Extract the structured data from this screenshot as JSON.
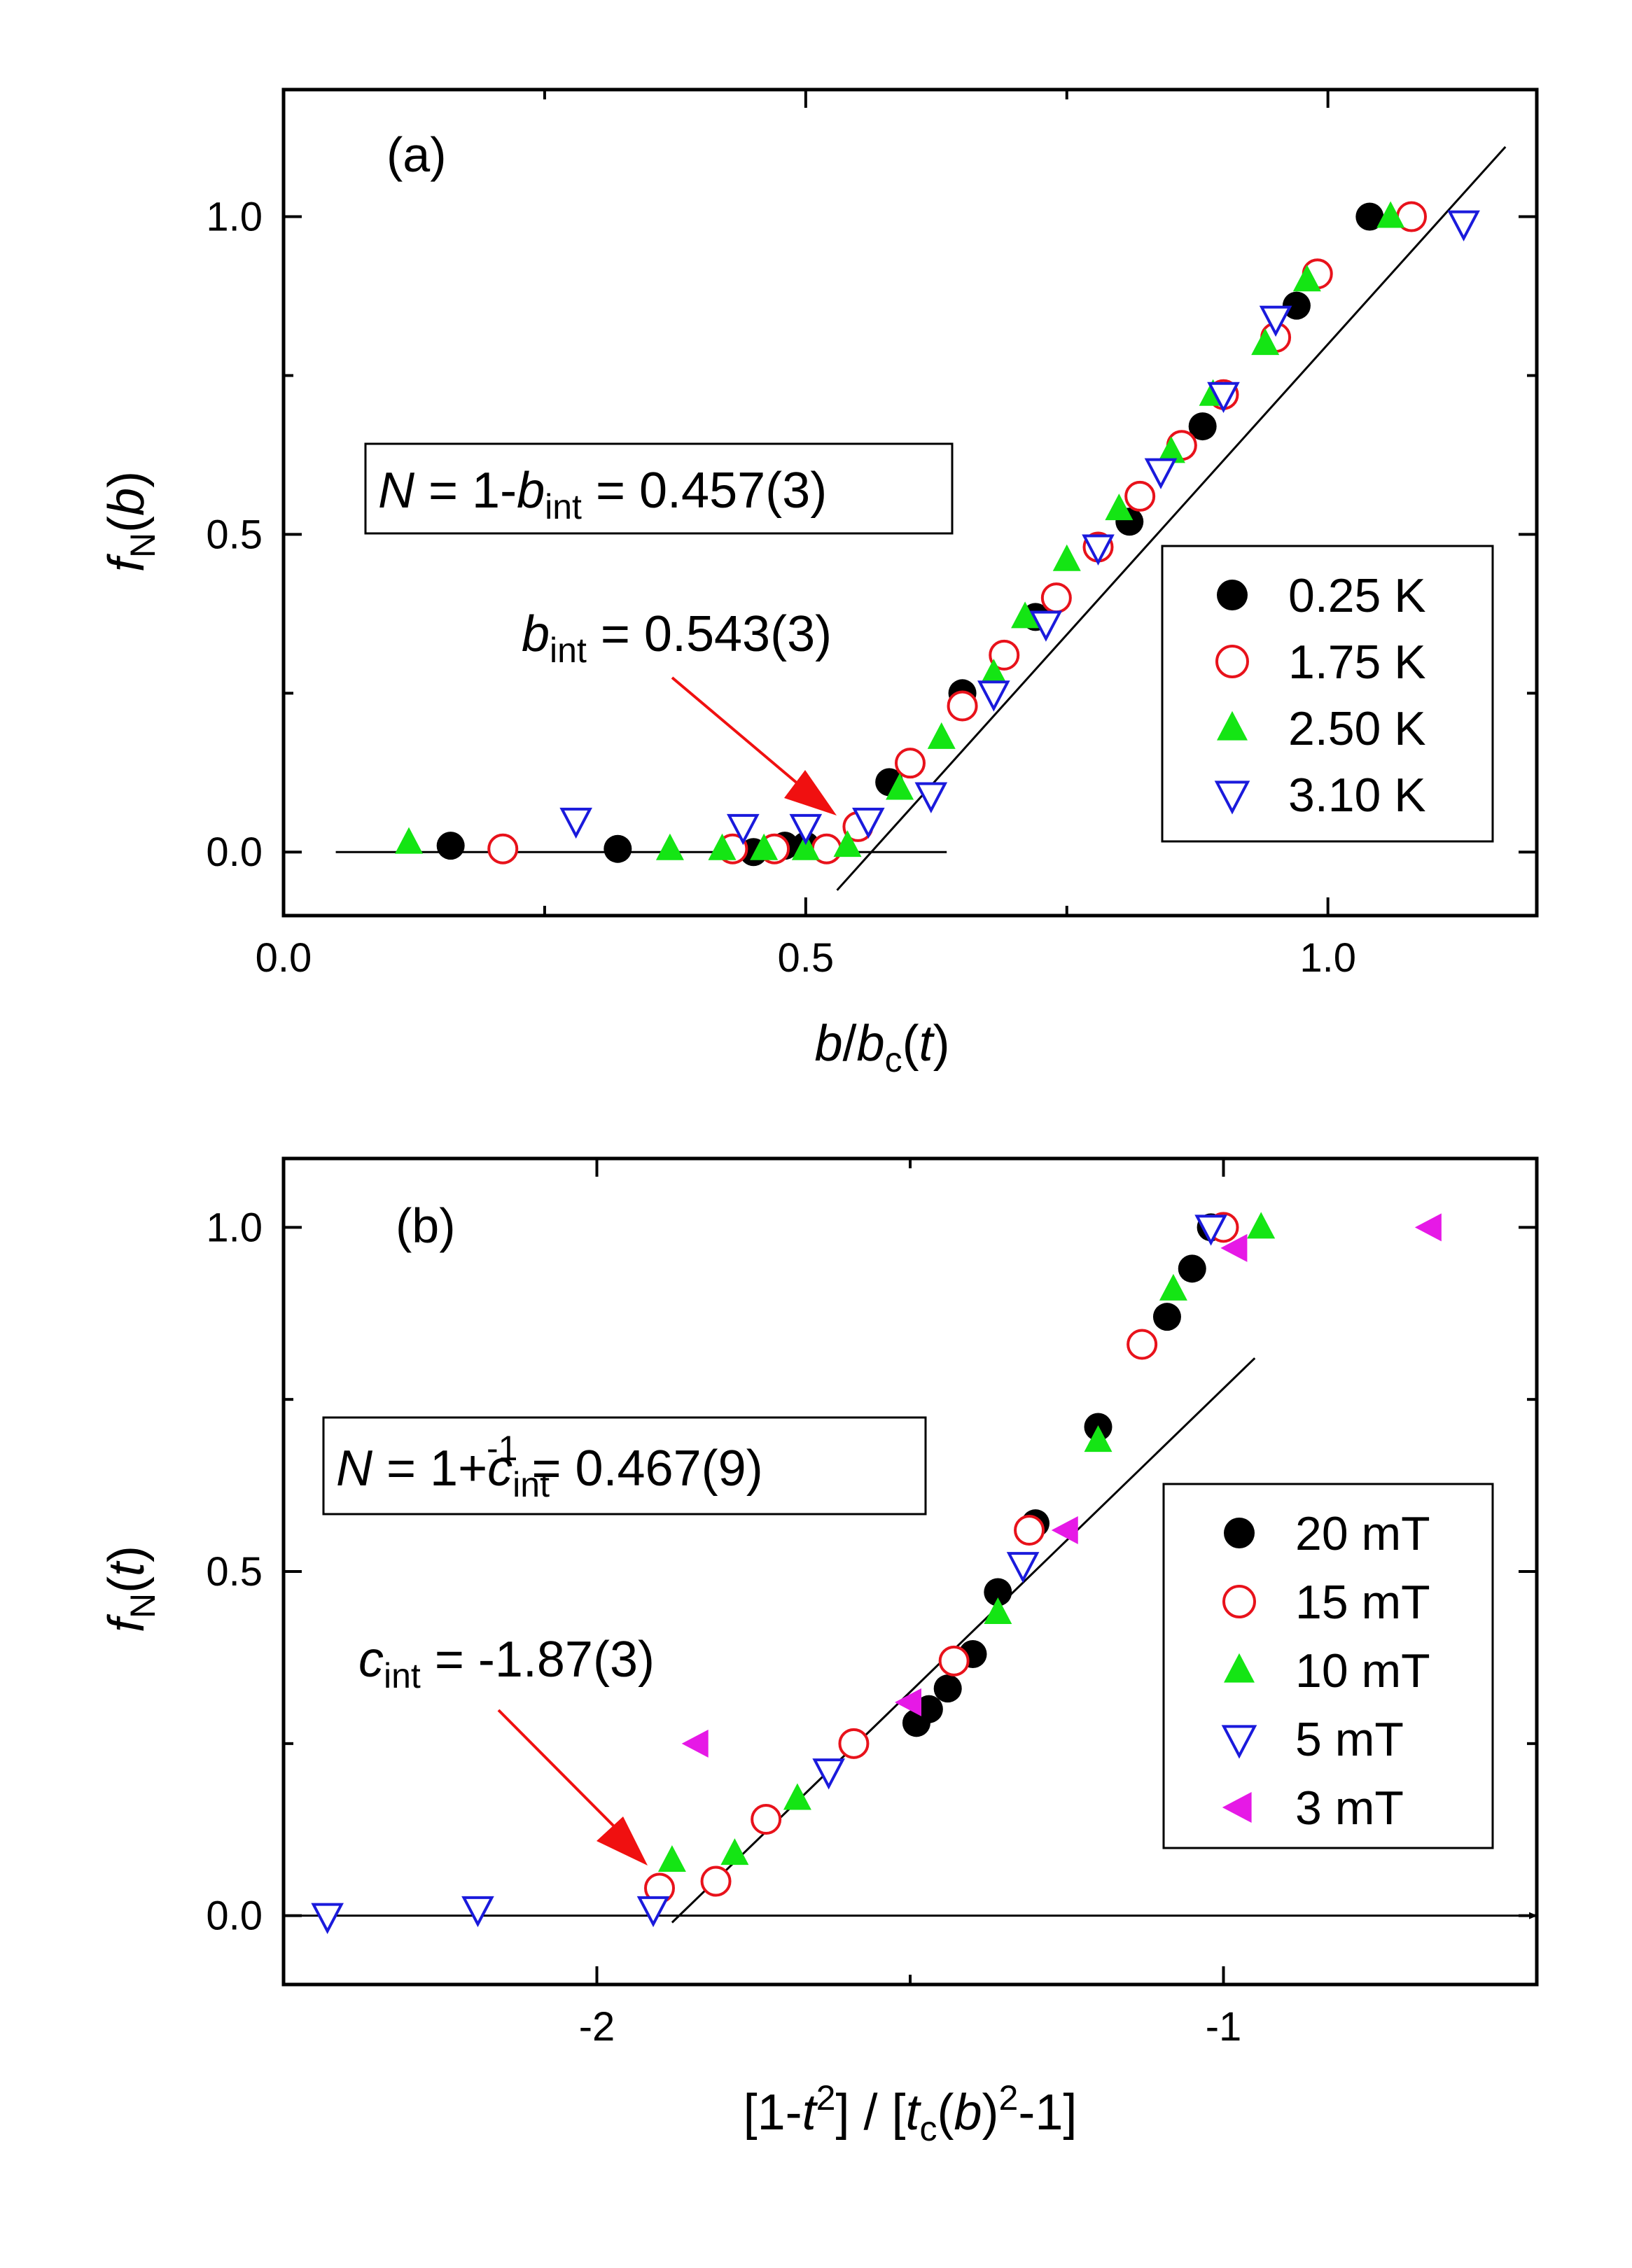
{
  "chart_data": [
    {
      "type": "scatter",
      "panel_label": "(a)",
      "xlabel": "b/b_c(t)",
      "ylabel": "f_N(b)",
      "xlim": [
        0.0,
        1.2
      ],
      "ylim": [
        -0.1,
        1.2
      ],
      "xticks": [
        0.0,
        0.5,
        1.0
      ],
      "yticks": [
        0.0,
        0.5,
        1.0
      ],
      "xtick_labels": [
        "0.0",
        "0.5",
        "1.0"
      ],
      "ytick_labels": [
        "0.0",
        "0.5",
        "1.0"
      ],
      "grid": false,
      "legend_position": "right",
      "fit_lines": [
        {
          "name": "baseline",
          "x": [
            0.05,
            0.635
          ],
          "y": [
            0.0,
            0.0
          ]
        },
        {
          "name": "linear fit",
          "x": [
            0.53,
            1.17
          ],
          "y": [
            -0.06,
            1.11
          ]
        }
      ],
      "series": [
        {
          "name": "0.25 K",
          "marker": "circle",
          "filled": true,
          "color": "#000000",
          "points": [
            [
              0.16,
              0.01
            ],
            [
              0.32,
              0.005
            ],
            [
              0.45,
              0.0
            ],
            [
              0.48,
              0.01
            ],
            [
              0.5,
              0.01
            ],
            [
              0.58,
              0.11
            ],
            [
              0.65,
              0.25
            ],
            [
              0.72,
              0.37
            ],
            [
              0.81,
              0.52
            ],
            [
              0.88,
              0.67
            ],
            [
              0.97,
              0.86
            ],
            [
              1.04,
              1.0
            ]
          ]
        },
        {
          "name": "1.75 K",
          "marker": "circle",
          "filled": false,
          "color": "#e8121b",
          "points": [
            [
              0.21,
              0.005
            ],
            [
              0.43,
              0.005
            ],
            [
              0.47,
              0.005
            ],
            [
              0.52,
              0.005
            ],
            [
              0.55,
              0.04
            ],
            [
              0.6,
              0.14
            ],
            [
              0.65,
              0.23
            ],
            [
              0.69,
              0.31
            ],
            [
              0.74,
              0.4
            ],
            [
              0.78,
              0.48
            ],
            [
              0.82,
              0.56
            ],
            [
              0.86,
              0.64
            ],
            [
              0.9,
              0.72
            ],
            [
              0.95,
              0.81
            ],
            [
              0.99,
              0.91
            ],
            [
              1.08,
              1.0
            ]
          ]
        },
        {
          "name": "2.50 K",
          "marker": "triangle-up",
          "filled": true,
          "color": "#14e514",
          "points": [
            [
              0.12,
              0.015
            ],
            [
              0.37,
              0.005
            ],
            [
              0.42,
              0.005
            ],
            [
              0.46,
              0.005
            ],
            [
              0.5,
              0.005
            ],
            [
              0.54,
              0.01
            ],
            [
              0.59,
              0.1
            ],
            [
              0.63,
              0.18
            ],
            [
              0.68,
              0.28
            ],
            [
              0.71,
              0.37
            ],
            [
              0.75,
              0.46
            ],
            [
              0.8,
              0.54
            ],
            [
              0.85,
              0.63
            ],
            [
              0.89,
              0.72
            ],
            [
              0.94,
              0.8
            ],
            [
              0.98,
              0.9
            ],
            [
              1.06,
              1.0
            ]
          ]
        },
        {
          "name": "3.10 K",
          "marker": "triangle-down",
          "filled": false,
          "color": "#1a1adc",
          "points": [
            [
              0.28,
              0.05
            ],
            [
              0.44,
              0.04
            ],
            [
              0.5,
              0.04
            ],
            [
              0.56,
              0.05
            ],
            [
              0.62,
              0.09
            ],
            [
              0.68,
              0.25
            ],
            [
              0.73,
              0.36
            ],
            [
              0.78,
              0.48
            ],
            [
              0.84,
              0.6
            ],
            [
              0.9,
              0.72
            ],
            [
              0.95,
              0.84
            ],
            [
              1.13,
              0.99
            ]
          ]
        }
      ]
    },
    {
      "type": "scatter",
      "panel_label": "(b)",
      "xlabel": "[1-t^2] / [t_c(b)^2-1]",
      "ylabel": "f_N(t)",
      "xlim": [
        -2.5,
        -0.5
      ],
      "ylim": [
        -0.1,
        1.1
      ],
      "xticks": [
        -2,
        -1
      ],
      "yticks": [
        0.0,
        0.5,
        1.0
      ],
      "xtick_labels": [
        "-2",
        "-1"
      ],
      "ytick_labels": [
        "0.0",
        "0.5",
        "1.0"
      ],
      "grid": false,
      "legend_position": "right",
      "fit_lines": [
        {
          "name": "linear fit",
          "x": [
            -1.88,
            -0.95
          ],
          "y": [
            -0.01,
            0.81
          ]
        },
        {
          "name": "zero baseline arrow",
          "x": [
            -2.5,
            -0.5
          ],
          "y": [
            0.0,
            0.0
          ]
        }
      ],
      "series": [
        {
          "name": "20 mT",
          "marker": "circle",
          "filled": true,
          "color": "#000000",
          "points": [
            [
              -1.49,
              0.28
            ],
            [
              -1.47,
              0.3
            ],
            [
              -1.44,
              0.33
            ],
            [
              -1.4,
              0.38
            ],
            [
              -1.36,
              0.47
            ],
            [
              -1.3,
              0.57
            ],
            [
              -1.2,
              0.71
            ],
            [
              -1.09,
              0.87
            ],
            [
              -1.05,
              0.94
            ],
            [
              -1.02,
              1.0
            ]
          ]
        },
        {
          "name": "15 mT",
          "marker": "circle",
          "filled": false,
          "color": "#e8121b",
          "points": [
            [
              -1.9,
              0.04
            ],
            [
              -1.81,
              0.05
            ],
            [
              -1.73,
              0.14
            ],
            [
              -1.59,
              0.25
            ],
            [
              -1.43,
              0.37
            ],
            [
              -1.31,
              0.56
            ],
            [
              -1.13,
              0.83
            ],
            [
              -1.0,
              1.0
            ]
          ]
        },
        {
          "name": "10 mT",
          "marker": "triangle-up",
          "filled": true,
          "color": "#14e514",
          "points": [
            [
              -1.88,
              0.08
            ],
            [
              -1.78,
              0.09
            ],
            [
              -1.68,
              0.17
            ],
            [
              -1.36,
              0.44
            ],
            [
              -1.2,
              0.69
            ],
            [
              -1.08,
              0.91
            ],
            [
              -0.94,
              1.0
            ]
          ]
        },
        {
          "name": "5 mT",
          "marker": "triangle-down",
          "filled": false,
          "color": "#1a1adc",
          "points": [
            [
              -2.43,
              0.0
            ],
            [
              -2.19,
              0.01
            ],
            [
              -1.91,
              0.01
            ],
            [
              -1.63,
              0.21
            ],
            [
              -1.32,
              0.51
            ],
            [
              -1.02,
              1.0
            ]
          ]
        },
        {
          "name": "3 mT",
          "marker": "triangle-left",
          "filled": true,
          "color": "#e619e6",
          "points": [
            [
              -1.84,
              0.25
            ],
            [
              -1.5,
              0.31
            ],
            [
              -1.25,
              0.56
            ],
            [
              -0.98,
              0.97
            ],
            [
              -0.67,
              1.0
            ]
          ]
        }
      ]
    }
  ],
  "annotations": {
    "a_box": {
      "N": "N",
      "eq": " = 1-",
      "b": "b",
      "int_sub": "int",
      "value": " = 0.457(3)"
    },
    "a_arrow_label": {
      "b": "b",
      "int_sub": "int",
      "value": " = 0.543(3)"
    },
    "b_box": {
      "N": "N",
      "eq": " = 1+",
      "c": "c",
      "int_sub": "int",
      "sup": "-1",
      "value": " = 0.467(9)"
    },
    "b_arrow_label": {
      "c": "c",
      "int_sub": "int",
      "value": " = -1.87(3)"
    }
  },
  "axis_titles": {
    "a_y": {
      "f": "f",
      "sub": "N",
      "open": "(",
      "var": "b",
      "close": ")"
    },
    "a_x": {
      "b": "b",
      "slash": "/",
      "b2": "b",
      "sub": "c",
      "open": "(",
      "var": "t",
      "close": ")"
    },
    "b_y": {
      "f": "f",
      "sub": "N",
      "open": "(",
      "var": "t",
      "close": ")"
    },
    "b_x": {
      "p1": "[1-",
      "t": "t",
      "sup2": "2",
      "p2": "] / [",
      "t2": "t",
      "sub_c": "c",
      "p3": "(",
      "b": "b",
      "p4": ")",
      "sup2b": "2",
      "p5": "-1]"
    }
  },
  "colors": {
    "arrow": "#f01010",
    "fit_line": "#000000"
  }
}
